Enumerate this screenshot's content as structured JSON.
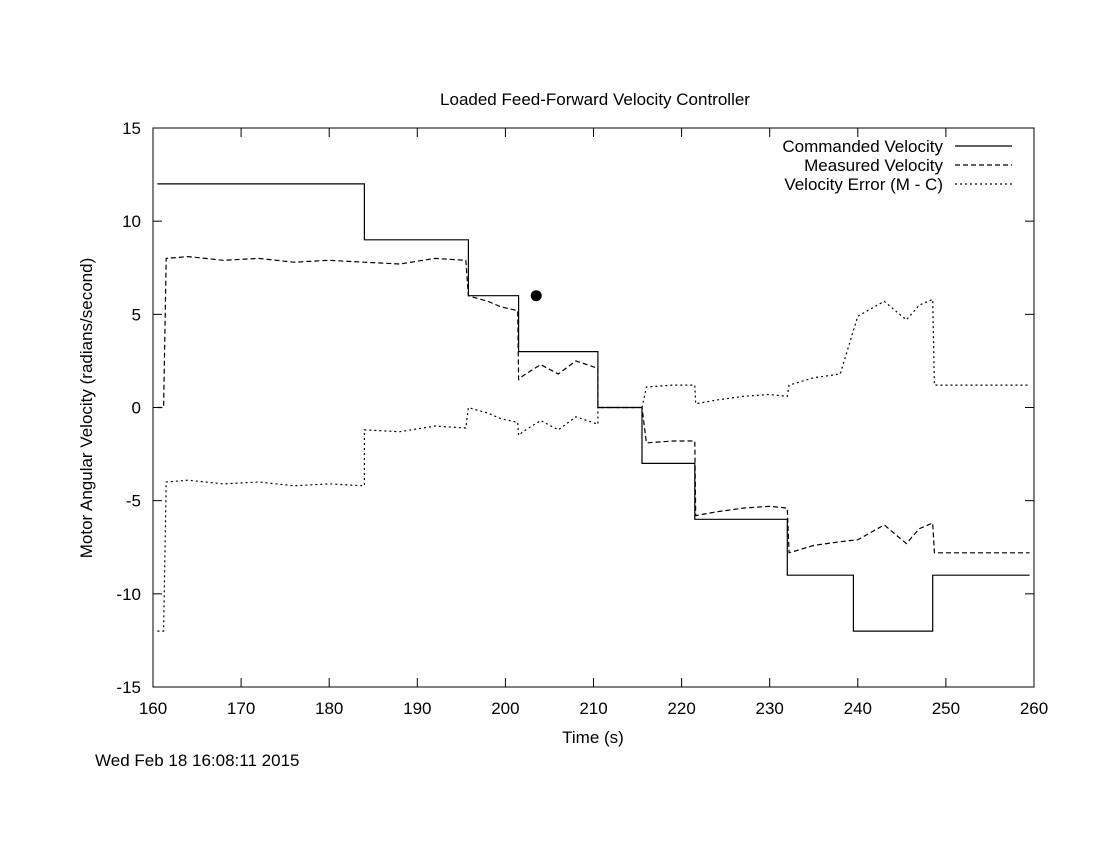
{
  "chart_data": {
    "type": "line",
    "title": "Loaded Feed-Forward Velocity Controller",
    "xlabel": "Time (s)",
    "ylabel": "Motor Angular Velocity (radians/second)",
    "xlim": [
      160,
      260
    ],
    "ylim": [
      -15,
      15
    ],
    "xticks": [
      160,
      170,
      180,
      190,
      200,
      210,
      220,
      230,
      240,
      250,
      260
    ],
    "yticks": [
      -15,
      -10,
      -5,
      0,
      5,
      10,
      15
    ],
    "grid": false,
    "legend_position": "top-right",
    "series": [
      {
        "name": "Commanded Velocity",
        "style": "solid",
        "x": [
          160.5,
          184,
          184,
          195.8,
          195.8,
          201.5,
          201.5,
          210.5,
          210.5,
          215.5,
          215.5,
          221.5,
          221.5,
          232,
          232,
          239.5,
          239.5,
          248.5,
          248.5,
          259.5
        ],
        "y": [
          12,
          12,
          9,
          9,
          6,
          6,
          3,
          3,
          0,
          0,
          -3,
          -3,
          -6,
          -6,
          -9,
          -9,
          -12,
          -12,
          -9,
          -9
        ]
      },
      {
        "name": "Measured  Velocity",
        "style": "dashed",
        "x": [
          160.5,
          161.2,
          161.5,
          164,
          168,
          172,
          176,
          180,
          184,
          188,
          192,
          195.5,
          195.8,
          196.5,
          198,
          199.5,
          201.4,
          201.5,
          202,
          204,
          206,
          208,
          210.5,
          210.5,
          215.5,
          216,
          219,
          221.5,
          221.6,
          224,
          227,
          230,
          232,
          232.2,
          235,
          238,
          240,
          243,
          245.5,
          247,
          248.5,
          248.7,
          251,
          254,
          259.5
        ],
        "y": [
          0,
          0,
          8,
          8.1,
          7.9,
          8.0,
          7.8,
          7.9,
          7.8,
          7.7,
          8.0,
          7.9,
          6.0,
          5.9,
          5.7,
          5.4,
          5.2,
          1.5,
          1.7,
          2.3,
          1.8,
          2.5,
          2.1,
          0,
          0,
          -1.9,
          -1.8,
          -1.8,
          -5.8,
          -5.6,
          -5.4,
          -5.3,
          -5.4,
          -7.8,
          -7.4,
          -7.2,
          -7.1,
          -6.3,
          -7.3,
          -6.5,
          -6.2,
          -7.8,
          -7.8,
          -7.8,
          -7.8
        ]
      },
      {
        "name": "Velocity Error (M - C)",
        "style": "dotted",
        "x": [
          160.5,
          161.2,
          161.5,
          164,
          168,
          172,
          176,
          180,
          184,
          184,
          188,
          192,
          195.5,
          195.8,
          196.5,
          198,
          199.5,
          201.4,
          201.5,
          202,
          204,
          206,
          208,
          210.5,
          210.5,
          215.5,
          216,
          219,
          221.5,
          221.6,
          224,
          227,
          230,
          232,
          232.2,
          235,
          238,
          240,
          243,
          245.5,
          247,
          248.5,
          248.7,
          251,
          254,
          259.5
        ],
        "y": [
          -12,
          -12,
          -4,
          -3.9,
          -4.1,
          -4.0,
          -4.2,
          -4.1,
          -4.2,
          -1.2,
          -1.3,
          -1.0,
          -1.1,
          0.0,
          -0.1,
          -0.3,
          -0.6,
          -0.8,
          -1.5,
          -1.3,
          -0.7,
          -1.2,
          -0.5,
          -0.9,
          0,
          0,
          1.1,
          1.2,
          1.2,
          0.2,
          0.4,
          0.6,
          0.7,
          0.6,
          1.2,
          1.6,
          1.8,
          4.9,
          5.7,
          4.7,
          5.5,
          5.8,
          1.2,
          1.2,
          1.2,
          1.2
        ]
      }
    ],
    "marker": {
      "x": 203.5,
      "y": 6
    }
  },
  "footer": {
    "timestamp": "Wed Feb 18 16:08:11 2015"
  }
}
